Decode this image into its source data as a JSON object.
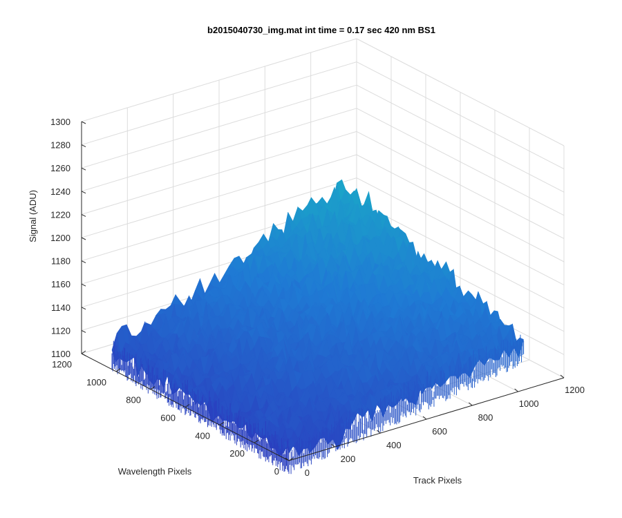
{
  "chart_data": {
    "type": "surface",
    "title": "b2015040730_img.mat int time = 0.17 sec  420 nm BS1",
    "xlabel": "Track Pixels",
    "ylabel": "Wavelength Pixels",
    "zlabel": "Signal (ADU)",
    "xlim": [
      0,
      1200
    ],
    "ylim": [
      0,
      1200
    ],
    "zlim": [
      1100,
      1300
    ],
    "x_ticks": [
      "0",
      "200",
      "400",
      "600",
      "800",
      "1000",
      "1200"
    ],
    "y_ticks": [
      "0",
      "200",
      "400",
      "600",
      "800",
      "1000",
      "1200"
    ],
    "z_ticks": [
      "1100",
      "1120",
      "1140",
      "1160",
      "1180",
      "1200",
      "1220",
      "1240",
      "1260",
      "1280",
      "1300"
    ],
    "grid": true,
    "colormap": "parula",
    "surface_extent": {
      "x": [
        0,
        1024
      ],
      "y": [
        0,
        1024
      ]
    },
    "signal_corners": {
      "x0_y0": 1105,
      "x1024_y0": 1140,
      "x0_y1024": 1115,
      "x1024_y1024": 1200
    },
    "noise_amplitude": 12,
    "colors": {
      "low": "#2a3fbf",
      "mid": "#1f7ad4",
      "high": "#19b3c4",
      "axis": "#262626",
      "grid": "#dcdcdc"
    }
  }
}
